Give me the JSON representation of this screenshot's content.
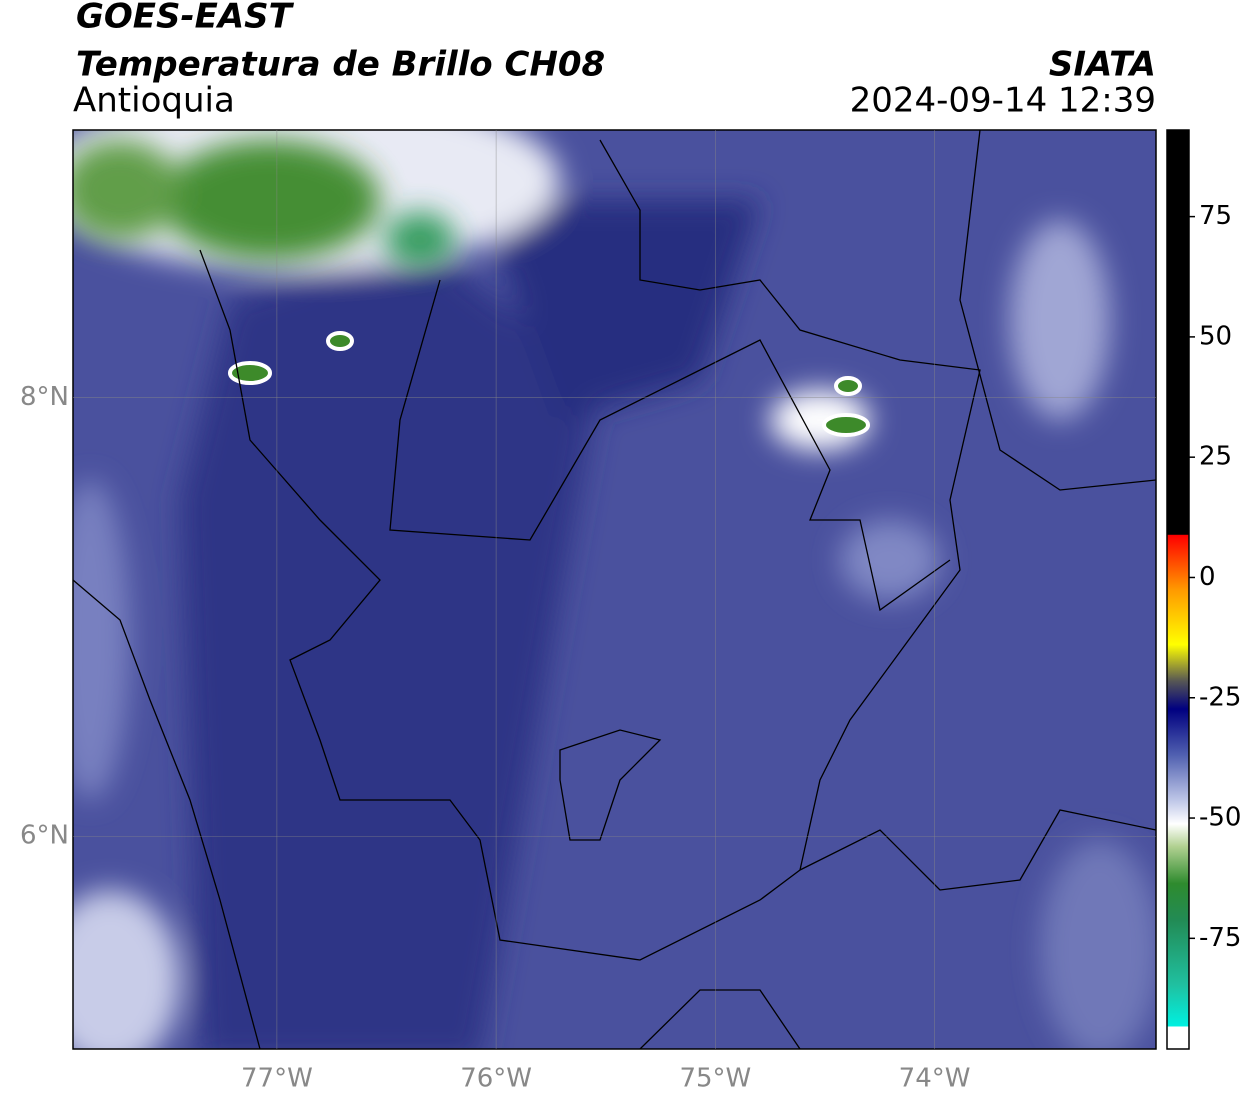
{
  "header": {
    "title": "GOES-EAST",
    "subtitle": "Temperatura de Brillo CH08",
    "region": "Antioquia",
    "source": "SIATA",
    "datetime": "2024-09-14 12:39"
  },
  "map": {
    "lon_range": [
      -77.93,
      -72.99
    ],
    "lat_range": [
      5.03,
      9.22
    ],
    "lon_ticks": [
      {
        "value": -77,
        "label": "77°W"
      },
      {
        "value": -76,
        "label": "76°W"
      },
      {
        "value": -75,
        "label": "75°W"
      },
      {
        "value": -74,
        "label": "74°W"
      }
    ],
    "lat_ticks": [
      {
        "value": 8,
        "label": "8°N"
      },
      {
        "value": 6,
        "label": "6°N"
      }
    ]
  },
  "colorbar": {
    "lim": [
      -98,
      93
    ],
    "ticks": [
      75,
      50,
      25,
      0,
      -25,
      -50,
      -75
    ]
  }
}
